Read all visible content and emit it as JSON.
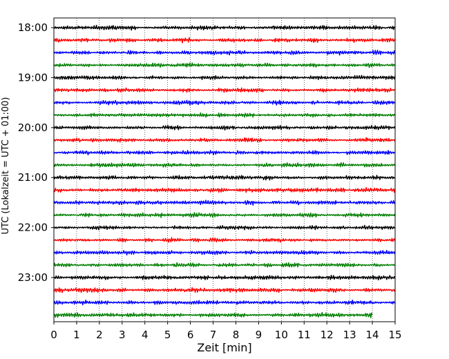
{
  "chart_data": {
    "type": "line",
    "title": "",
    "xlabel": "Zeit  [min]",
    "ylabel": "UTC (Lokalzeit = UTC + 01:00)",
    "xlim": [
      0,
      15
    ],
    "x_ticks": [
      "0",
      "1",
      "2",
      "3",
      "4",
      "5",
      "6",
      "7",
      "8",
      "9",
      "10",
      "11",
      "12",
      "13",
      "14",
      "15"
    ],
    "y_ticks": [
      {
        "label": "18:00",
        "row": 0
      },
      {
        "label": "19:00",
        "row": 4
      },
      {
        "label": "20:00",
        "row": 8
      },
      {
        "label": "21:00",
        "row": 12
      },
      {
        "label": "22:00",
        "row": 16
      },
      {
        "label": "23:00",
        "row": 20
      }
    ],
    "grid": "vertical dotted",
    "rows_per_hour": 4,
    "minutes_per_row": 15,
    "row_colors": [
      "#000000",
      "#ff0000",
      "#0000ff",
      "#008000"
    ],
    "row_count": 24,
    "last_row_end_minute": 14.0,
    "series_type": "helicorder seismogram traces"
  }
}
